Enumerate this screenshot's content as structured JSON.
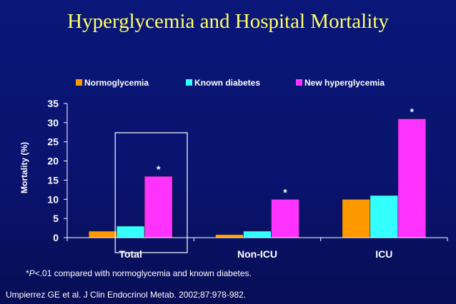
{
  "slide": {
    "title": "Hyperglycemia and Hospital Mortality",
    "footnote_prefix": "*",
    "footnote_italic": "P",
    "footnote_text": "<.01 compared with normoglycemia and known diabetes.",
    "citation": "Umpierrez GE et al. J Clin Endocrinol Metab. 2002;87:978-982."
  },
  "chart_data": {
    "type": "bar",
    "title": "",
    "xlabel": "",
    "ylabel": "Mortality (%)",
    "categories": [
      "Total",
      "Non-ICU",
      "ICU"
    ],
    "ylim": [
      0,
      35
    ],
    "yticks": [
      0,
      5,
      10,
      15,
      20,
      25,
      30,
      35
    ],
    "grid": false,
    "legend_position": "top",
    "series": [
      {
        "name": "Normoglycemia",
        "color": "#ff9900",
        "values": [
          1.7,
          0.8,
          10
        ]
      },
      {
        "name": "Known diabetes",
        "color": "#33ffff",
        "values": [
          3,
          1.7,
          11
        ]
      },
      {
        "name": "New hyperglycemia",
        "color": "#ff33ff",
        "values": [
          16,
          10,
          31
        ]
      }
    ],
    "annotations": [
      {
        "text": "*",
        "series": "New hyperglycemia",
        "category": "Total"
      },
      {
        "text": "*",
        "series": "New hyperglycemia",
        "category": "Non-ICU"
      },
      {
        "text": "*",
        "series": "New hyperglycemia",
        "category": "ICU"
      }
    ],
    "highlight_box_category": "Total"
  }
}
